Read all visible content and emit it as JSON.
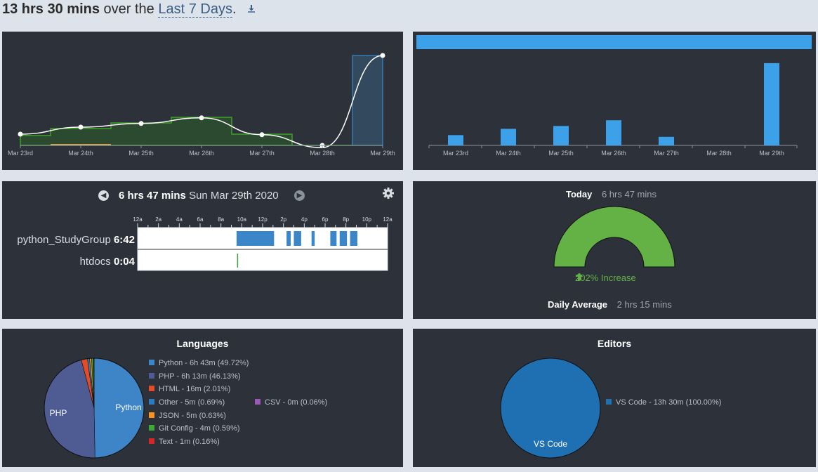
{
  "header": {
    "total": "13 hrs 30 mins",
    "over_text": "over the",
    "range_label": "Last 7 Days",
    "period": ".",
    "download_icon": "download-icon"
  },
  "days": [
    "Mar 23rd",
    "Mar 24th",
    "Mar 25th",
    "Mar 26th",
    "Mar 27th",
    "Mar 28th",
    "Mar 29th"
  ],
  "activity_chart": {
    "type": "area",
    "categories": [
      "Mar 23rd",
      "Mar 24th",
      "Mar 25th",
      "Mar 26th",
      "Mar 27th",
      "Mar 28th",
      "Mar 29th"
    ],
    "series": [
      {
        "name": "python_StudyGroup",
        "color": "#40a02b",
        "values": [
          0.35,
          0.6,
          0.8,
          1.0,
          0.4,
          0.0,
          0.0
        ]
      },
      {
        "name": "htdocs",
        "color": "#e3a150",
        "values": [
          0.0,
          0.05,
          0.0,
          0.0,
          0.0,
          0.0,
          0.0
        ]
      },
      {
        "name": "Mar 29th",
        "color": "#3a86c8",
        "values": [
          0,
          0,
          0,
          0,
          0,
          0,
          3.2
        ]
      }
    ],
    "trend": [
      0.4,
      0.65,
      0.78,
      0.98,
      0.38,
      -0.08,
      3.2
    ],
    "ylim": [
      0,
      3.5
    ]
  },
  "daily_chart": {
    "type": "bar",
    "categories": [
      "Mar 23rd",
      "Mar 24th",
      "Mar 25th",
      "Mar 26th",
      "Mar 27th",
      "Mar 28th",
      "Mar 29th"
    ],
    "values": [
      0.9,
      1.45,
      1.7,
      2.2,
      0.75,
      0.0,
      7.2
    ],
    "ylim": [
      0,
      7.5
    ],
    "color": "#3ca1e8"
  },
  "timeline": {
    "duration": "6 hrs 47 mins",
    "date": "Sun Mar 29th 2020",
    "prev_icon": "chevron-left-icon",
    "next_icon": "chevron-right-icon",
    "settings_icon": "gear-icon",
    "hours": [
      "12a",
      "2a",
      "4a",
      "6a",
      "8a",
      "10a",
      "12p",
      "2p",
      "4p",
      "6p",
      "8p",
      "10p",
      "12a"
    ],
    "projects": [
      {
        "name": "python_StudyGroup",
        "time": "6:42",
        "color": "#3a86c8",
        "segments": [
          [
            9.5,
            13.1
          ],
          [
            14.3,
            14.7
          ],
          [
            15.0,
            15.7
          ],
          [
            16.7,
            17.0
          ],
          [
            18.5,
            19.1
          ],
          [
            19.4,
            20.1
          ],
          [
            20.4,
            21.1
          ]
        ]
      },
      {
        "name": "htdocs",
        "time": "0:04",
        "color": "#3ea63e",
        "segments": [
          [
            9.55,
            9.62
          ]
        ]
      }
    ]
  },
  "gauge": {
    "today_label": "Today",
    "today_value": "6 hrs 47 mins",
    "increase": "202% Increase",
    "increase_icon": "arrow-up-icon",
    "fill_fraction": 1.0,
    "color": "#64b246",
    "avg_label": "Daily Average",
    "avg_value": "2 hrs 15 mins"
  },
  "languages": {
    "title": "Languages",
    "chart_data": {
      "type": "pie",
      "slices": [
        {
          "label": "Python - 6h 43m (49.72%)",
          "name": "Python",
          "value": 49.72,
          "color": "#3d85c6"
        },
        {
          "label": "PHP - 6h 13m (46.13%)",
          "name": "PHP",
          "value": 46.13,
          "color": "#4f5b93"
        },
        {
          "label": "HTML - 16m (2.01%)",
          "name": "HTML",
          "value": 2.01,
          "color": "#e34c26"
        },
        {
          "label": "Other - 5m (0.69%)",
          "name": "Other",
          "value": 0.69,
          "color": "#2d7bbf"
        },
        {
          "label": "JSON - 5m (0.63%)",
          "name": "JSON",
          "value": 0.63,
          "color": "#f7931e"
        },
        {
          "label": "Git Config - 4m (0.59%)",
          "name": "Git Config",
          "value": 0.59,
          "color": "#3aa935"
        },
        {
          "label": "Text - 1m (0.16%)",
          "name": "Text",
          "value": 0.16,
          "color": "#d62728"
        },
        {
          "label": "CSV - 0m (0.06%)",
          "name": "CSV",
          "value": 0.06,
          "color": "#9b59b6"
        }
      ]
    },
    "pie_labels": {
      "python": "Python",
      "php": "PHP"
    }
  },
  "editors": {
    "title": "Editors",
    "chart_data": {
      "type": "pie",
      "slices": [
        {
          "label": "VS Code - 13h 30m (100.00%)",
          "name": "VS Code",
          "value": 100.0,
          "color": "#1f70b3"
        }
      ]
    },
    "pie_label": "VS Code"
  }
}
